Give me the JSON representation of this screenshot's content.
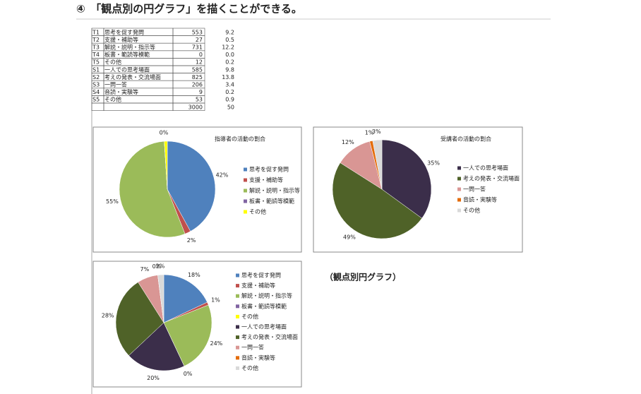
{
  "heading": "④　「観点別の円グラフ」を描くことができる。",
  "table": {
    "rows": [
      [
        "T1",
        "思考を促す発問",
        "553",
        "9.2"
      ],
      [
        "T2",
        "支援・補助等",
        "27",
        "0.5"
      ],
      [
        "T3",
        "解説・説明・指示等",
        "731",
        "12.2"
      ],
      [
        "T4",
        "板書・範読等模範",
        "0",
        "0.0"
      ],
      [
        "T5",
        "その他",
        "12",
        "0.2"
      ],
      [
        "S1",
        "一人での思考場面",
        "585",
        "9.8"
      ],
      [
        "S2",
        "考えの発表・交流場面",
        "825",
        "13.8"
      ],
      [
        "S3",
        "一問一答",
        "206",
        "3.4"
      ],
      [
        "S4",
        "音読・実験等",
        "9",
        "0.2"
      ],
      [
        "S5",
        "その他",
        "53",
        "0.9"
      ],
      [
        null,
        null,
        "3000",
        "50"
      ]
    ]
  },
  "chart_data": [
    {
      "type": "pie",
      "title": "指導者の活動の割合",
      "categories": [
        "思考を促す発問",
        "支援・補助等",
        "解説・説明・指示等",
        "板書・範読等模範",
        "その他"
      ],
      "values": [
        42,
        2,
        55,
        0,
        1
      ],
      "value_labels": [
        "42%",
        "2%",
        "55%",
        "0%",
        null
      ],
      "colors": [
        "#4f81bd",
        "#c0504d",
        "#9bbb59",
        "#8064a2",
        "#ffff00"
      ]
    },
    {
      "type": "pie",
      "title": "受講者の活動の割合",
      "categories": [
        "一人での思考場面",
        "考えの発表・交流場面",
        "一問一答",
        "音読・実験等",
        "その他"
      ],
      "values": [
        35,
        49,
        12,
        1,
        3
      ],
      "value_labels": [
        "35%",
        "49%",
        "12%",
        "1%",
        "3%"
      ],
      "colors": [
        "#3b2e4a",
        "#4f6228",
        "#d99694",
        "#e46c0a",
        "#d9d9d9"
      ]
    },
    {
      "type": "pie",
      "categories": [
        "思考を促す発問",
        "支援・補助等",
        "解説・説明・指示等",
        "板書・範読等模範",
        "その他",
        "一人での思考場面",
        "考えの発表・交流場面",
        "一問一答",
        "音読・実験等",
        "その他"
      ],
      "values": [
        18,
        1,
        24,
        0,
        0,
        20,
        28,
        7,
        0,
        2
      ],
      "value_labels": [
        "18%",
        "1%",
        "24%",
        "0%",
        null,
        "20%",
        "28%",
        "7%",
        "0%",
        "2%"
      ],
      "colors": [
        "#4f81bd",
        "#c0504d",
        "#9bbb59",
        "#8064a2",
        "#ffff00",
        "#3b2e4a",
        "#4f6228",
        "#d99694",
        "#e46c0a",
        "#d9d9d9"
      ]
    }
  ],
  "caption": "（観点別円グラフ）"
}
